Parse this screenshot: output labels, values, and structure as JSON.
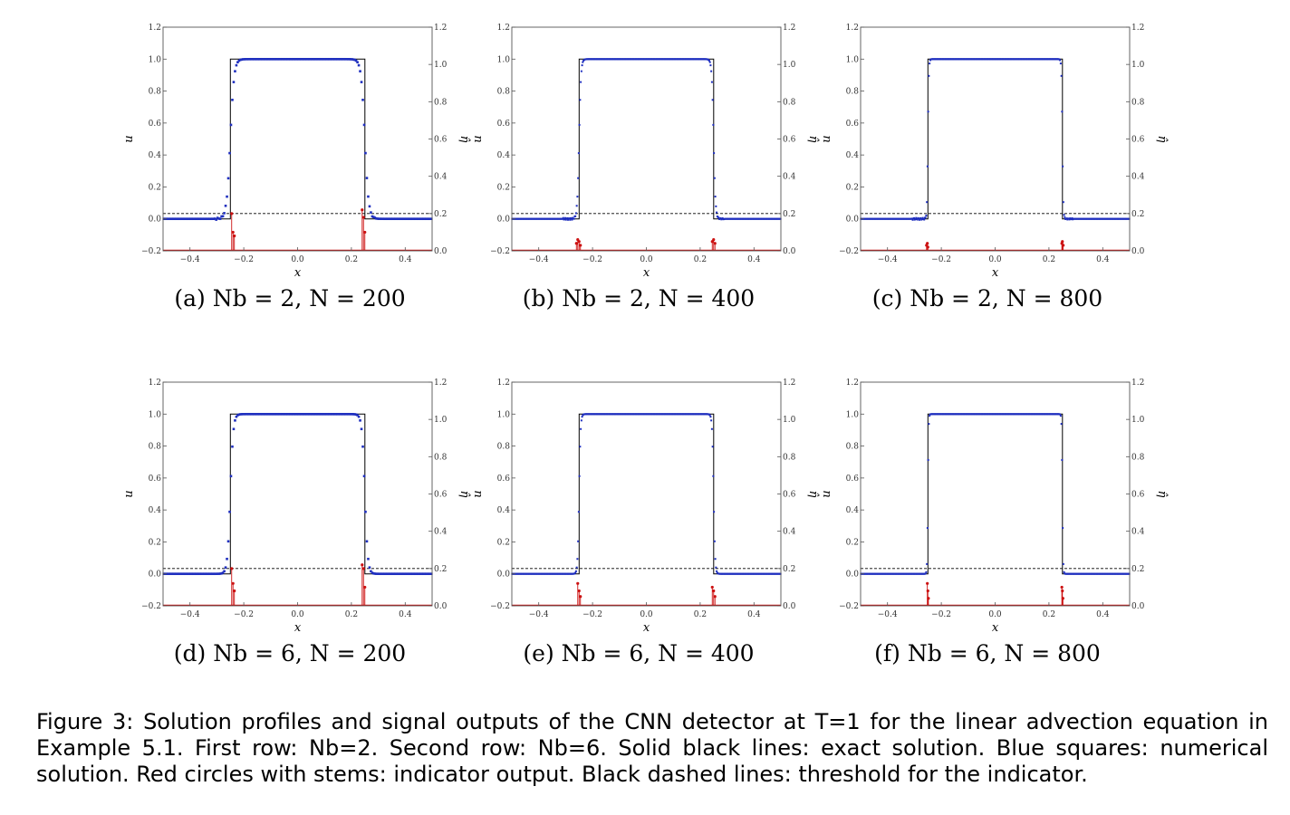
{
  "figure": {
    "caption_prefix": "Figure 3:",
    "caption_body": "Solution profiles and signal outputs of the CNN detector at T=1 for the linear advection equation in Example 5.1. First row: Nb=2. Second row: Nb=6. Solid black lines: exact solution. Blue squares: numerical solution. Red circles with stems: indicator output. Black dashed lines: threshold for the indicator."
  },
  "colors": {
    "exact": "#000000",
    "numerical": "#1f2fbf",
    "indicator": "#cc1111",
    "threshold": "#000000"
  },
  "chart_data": [
    {
      "type": "scatter",
      "label": "(a)",
      "subcaption": "(a) Nb = 2, N = 200",
      "Nb": 2,
      "N": 200,
      "xlabel": "x",
      "ylabel_left": "u",
      "ylabel_right": "η̂",
      "xlim": [
        -0.5,
        0.5
      ],
      "ylim_left": [
        -0.2,
        1.2
      ],
      "ylim_right": [
        0.0,
        1.2
      ],
      "x_ticks": [
        "−0.4",
        "−0.2",
        "0.0",
        "0.2",
        "0.4"
      ],
      "y_ticks_left": [
        "−0.2",
        "0.0",
        "0.2",
        "0.4",
        "0.6",
        "0.8",
        "1.0",
        "1.2"
      ],
      "y_ticks_right": [
        "0.0",
        "0.2",
        "0.4",
        "0.6",
        "0.8",
        "1.0",
        "1.2"
      ],
      "exact": {
        "x": [
          -0.5,
          -0.25,
          -0.25,
          0.25,
          0.25,
          0.5
        ],
        "u": [
          0,
          0,
          1,
          1,
          0,
          0
        ]
      },
      "threshold": 0.2,
      "indicator": {
        "x": [
          -0.245,
          -0.24,
          -0.235,
          0.24,
          0.245,
          0.25
        ],
        "eta": [
          0.2,
          0.1,
          0.08,
          0.22,
          0.18,
          0.1
        ]
      }
    },
    {
      "type": "scatter",
      "label": "(b)",
      "subcaption": "(b) Nb = 2, N = 400",
      "Nb": 2,
      "N": 400,
      "xlabel": "x",
      "ylabel_left": "u",
      "ylabel_right": "η̂",
      "xlim": [
        -0.5,
        0.5
      ],
      "ylim_left": [
        -0.2,
        1.2
      ],
      "ylim_right": [
        0.0,
        1.2
      ],
      "x_ticks": [
        "−0.4",
        "−0.2",
        "0.0",
        "0.2",
        "0.4"
      ],
      "y_ticks_left": [
        "−0.2",
        "0.0",
        "0.2",
        "0.4",
        "0.6",
        "0.8",
        "1.0",
        "1.2"
      ],
      "y_ticks_right": [
        "0.0",
        "0.2",
        "0.4",
        "0.6",
        "0.8",
        "1.0",
        "1.2"
      ],
      "exact": {
        "x": [
          -0.5,
          -0.25,
          -0.25,
          0.25,
          0.25,
          0.5
        ],
        "u": [
          0,
          0,
          1,
          1,
          0,
          0
        ]
      },
      "threshold": 0.2,
      "indicator": {
        "x": [
          -0.26,
          -0.255,
          -0.25,
          -0.245,
          0.245,
          0.25,
          0.255
        ],
        "eta": [
          0.04,
          0.06,
          0.05,
          0.03,
          0.05,
          0.06,
          0.04
        ]
      }
    },
    {
      "type": "scatter",
      "label": "(c)",
      "subcaption": "(c) Nb = 2, N = 800",
      "Nb": 2,
      "N": 800,
      "xlabel": "x",
      "ylabel_left": "u",
      "ylabel_right": "η̂",
      "xlim": [
        -0.5,
        0.5
      ],
      "ylim_left": [
        -0.2,
        1.2
      ],
      "ylim_right": [
        0.0,
        1.2
      ],
      "x_ticks": [
        "−0.4",
        "−0.2",
        "0.0",
        "0.2",
        "0.4"
      ],
      "y_ticks_left": [
        "−0.2",
        "0.0",
        "0.2",
        "0.4",
        "0.6",
        "0.8",
        "1.0",
        "1.2"
      ],
      "y_ticks_right": [
        "0.0",
        "0.2",
        "0.4",
        "0.6",
        "0.8",
        "1.0",
        "1.2"
      ],
      "exact": {
        "x": [
          -0.5,
          -0.25,
          -0.25,
          0.25,
          0.25,
          0.5
        ],
        "u": [
          0,
          0,
          1,
          1,
          0,
          0
        ]
      },
      "threshold": 0.2,
      "indicator": {
        "x": [
          -0.255,
          -0.252,
          -0.25,
          0.248,
          0.25,
          0.253
        ],
        "eta": [
          0.03,
          0.04,
          0.02,
          0.04,
          0.05,
          0.03
        ]
      }
    },
    {
      "type": "scatter",
      "label": "(d)",
      "subcaption": "(d) Nb = 6, N = 200",
      "Nb": 6,
      "N": 200,
      "xlabel": "x",
      "ylabel_left": "u",
      "ylabel_right": "η̂",
      "xlim": [
        -0.5,
        0.5
      ],
      "ylim_left": [
        -0.2,
        1.2
      ],
      "ylim_right": [
        0.0,
        1.2
      ],
      "x_ticks": [
        "−0.4",
        "−0.2",
        "0.0",
        "0.2",
        "0.4"
      ],
      "y_ticks_left": [
        "−0.2",
        "0.0",
        "0.2",
        "0.4",
        "0.6",
        "0.8",
        "1.0",
        "1.2"
      ],
      "y_ticks_right": [
        "0.0",
        "0.2",
        "0.4",
        "0.6",
        "0.8",
        "1.0",
        "1.2"
      ],
      "exact": {
        "x": [
          -0.5,
          -0.25,
          -0.25,
          0.25,
          0.25,
          0.5
        ],
        "u": [
          0,
          0,
          1,
          1,
          0,
          0
        ]
      },
      "threshold": 0.2,
      "indicator": {
        "x": [
          -0.245,
          -0.24,
          -0.235,
          0.24,
          0.245,
          0.25
        ],
        "eta": [
          0.2,
          0.12,
          0.08,
          0.22,
          0.2,
          0.1
        ]
      }
    },
    {
      "type": "scatter",
      "label": "(e)",
      "subcaption": "(e) Nb = 6, N = 400",
      "Nb": 6,
      "N": 400,
      "xlabel": "x",
      "ylabel_left": "u",
      "ylabel_right": "η̂",
      "xlim": [
        -0.5,
        0.5
      ],
      "ylim_left": [
        -0.2,
        1.2
      ],
      "ylim_right": [
        0.0,
        1.2
      ],
      "x_ticks": [
        "−0.4",
        "−0.2",
        "0.0",
        "0.2",
        "0.4"
      ],
      "y_ticks_left": [
        "−0.2",
        "0.0",
        "0.2",
        "0.4",
        "0.6",
        "0.8",
        "1.0",
        "1.2"
      ],
      "y_ticks_right": [
        "0.0",
        "0.2",
        "0.4",
        "0.6",
        "0.8",
        "1.0",
        "1.2"
      ],
      "exact": {
        "x": [
          -0.5,
          -0.25,
          -0.25,
          0.25,
          0.25,
          0.5
        ],
        "u": [
          0,
          0,
          1,
          1,
          0,
          0
        ]
      },
      "threshold": 0.2,
      "indicator": {
        "x": [
          -0.255,
          -0.25,
          -0.245,
          0.245,
          0.25,
          0.255
        ],
        "eta": [
          0.12,
          0.08,
          0.05,
          0.1,
          0.08,
          0.05
        ]
      }
    },
    {
      "type": "scatter",
      "label": "(f)",
      "subcaption": "(f) Nb = 6, N = 800",
      "Nb": 6,
      "N": 800,
      "xlabel": "x",
      "ylabel_left": "u",
      "ylabel_right": "η̂",
      "xlim": [
        -0.5,
        0.5
      ],
      "ylim_left": [
        -0.2,
        1.2
      ],
      "ylim_right": [
        0.0,
        1.2
      ],
      "x_ticks": [
        "−0.4",
        "−0.2",
        "0.0",
        "0.2",
        "0.4"
      ],
      "y_ticks_left": [
        "−0.2",
        "0.0",
        "0.2",
        "0.4",
        "0.6",
        "0.8",
        "1.0",
        "1.2"
      ],
      "y_ticks_right": [
        "0.0",
        "0.2",
        "0.4",
        "0.6",
        "0.8",
        "1.0",
        "1.2"
      ],
      "exact": {
        "x": [
          -0.5,
          -0.25,
          -0.25,
          0.25,
          0.25,
          0.5
        ],
        "u": [
          0,
          0,
          1,
          1,
          0,
          0
        ]
      },
      "threshold": 0.2,
      "indicator": {
        "x": [
          -0.252,
          -0.25,
          -0.248,
          0.248,
          0.25,
          0.252
        ],
        "eta": [
          0.12,
          0.08,
          0.04,
          0.1,
          0.08,
          0.04
        ]
      }
    }
  ]
}
